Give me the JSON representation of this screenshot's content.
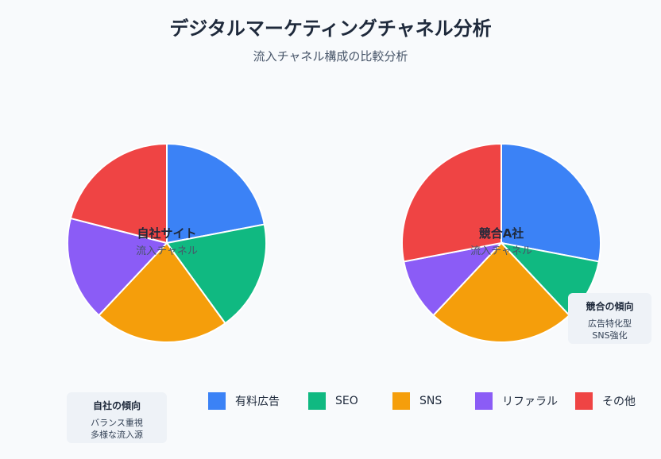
{
  "header": {
    "title": "デジタルマーケティングチャネル分析",
    "subtitle": "流入チャネル構成の比較分析"
  },
  "chart_data": [
    {
      "type": "pie",
      "title": "自社サイト",
      "subtitle": "流入チャネル",
      "categories": [
        "有料広告",
        "SEO",
        "SNS",
        "リファラル",
        "その他"
      ],
      "values": [
        22,
        18,
        22,
        17,
        21
      ]
    },
    {
      "type": "pie",
      "title": "競合A社",
      "subtitle": "流入チャネル",
      "categories": [
        "有料広告",
        "SEO",
        "SNS",
        "リファラル",
        "その他"
      ],
      "values": [
        28,
        10,
        24,
        10,
        28
      ]
    }
  ],
  "legend": {
    "placement": "bottom",
    "items": [
      {
        "label": "有料広告",
        "color": "#3b82f6"
      },
      {
        "label": "SEO",
        "color": "#10b981"
      },
      {
        "label": "SNS",
        "color": "#f59e0b"
      },
      {
        "label": "リファラル",
        "color": "#8b5cf6"
      },
      {
        "label": "その他",
        "color": "#ef4444"
      }
    ]
  },
  "notes": {
    "own": {
      "title": "自社の傾向",
      "line1": "バランス重視",
      "line2": "多様な流入源"
    },
    "competitor": {
      "title": "競合の傾向",
      "line1": "広告特化型",
      "line2": "SNS強化"
    }
  }
}
